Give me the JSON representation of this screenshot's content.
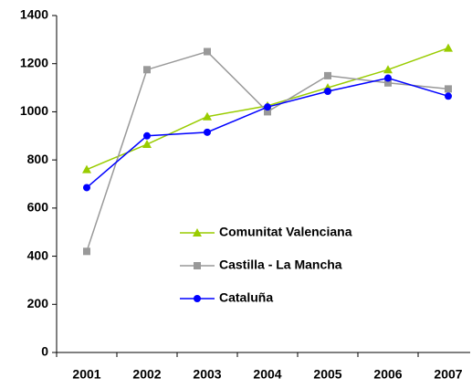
{
  "chart_data": {
    "type": "line",
    "categories": [
      "2001",
      "2002",
      "2003",
      "2004",
      "2005",
      "2006",
      "2007"
    ],
    "series": [
      {
        "name": "Comunitat Valenciana",
        "color": "#99cc00",
        "marker": "triangle",
        "values": [
          760,
          865,
          980,
          1025,
          1100,
          1175,
          1265
        ]
      },
      {
        "name": "Castilla - La Mancha",
        "color": "#999999",
        "marker": "square",
        "values": [
          420,
          1175,
          1250,
          1000,
          1150,
          1120,
          1095
        ]
      },
      {
        "name": "Cataluña",
        "color": "#0000ff",
        "marker": "circle",
        "values": [
          685,
          900,
          915,
          1020,
          1085,
          1140,
          1065
        ]
      }
    ],
    "ylim": [
      0,
      1400
    ],
    "yticks": [
      0,
      200,
      400,
      600,
      800,
      1000,
      1200,
      1400
    ],
    "grid": false
  }
}
